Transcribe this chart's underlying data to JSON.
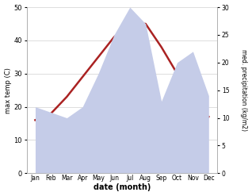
{
  "months": [
    "Jan",
    "Feb",
    "Mar",
    "Apr",
    "May",
    "Jun",
    "Jul",
    "Aug",
    "Sep",
    "Oct",
    "Nov",
    "Dec"
  ],
  "temperature": [
    16,
    18,
    23,
    29,
    35,
    41,
    45,
    45,
    38,
    30,
    19,
    17
  ],
  "precipitation": [
    12,
    11,
    10,
    12,
    18,
    25,
    30,
    27,
    13,
    20,
    22,
    14
  ],
  "temp_color": "#aa2222",
  "precip_fill_color": "#c5cce8",
  "left_ylabel": "max temp (C)",
  "right_ylabel": "med. precipitation (kg/m2)",
  "xlabel": "date (month)",
  "ylim_left": [
    0,
    50
  ],
  "ylim_right": [
    0,
    30
  ],
  "yticks_left": [
    0,
    10,
    20,
    30,
    40,
    50
  ],
  "yticks_right": [
    0,
    5,
    10,
    15,
    20,
    25,
    30
  ],
  "background_color": "#ffffff",
  "grid_color": "#d0d0d0"
}
